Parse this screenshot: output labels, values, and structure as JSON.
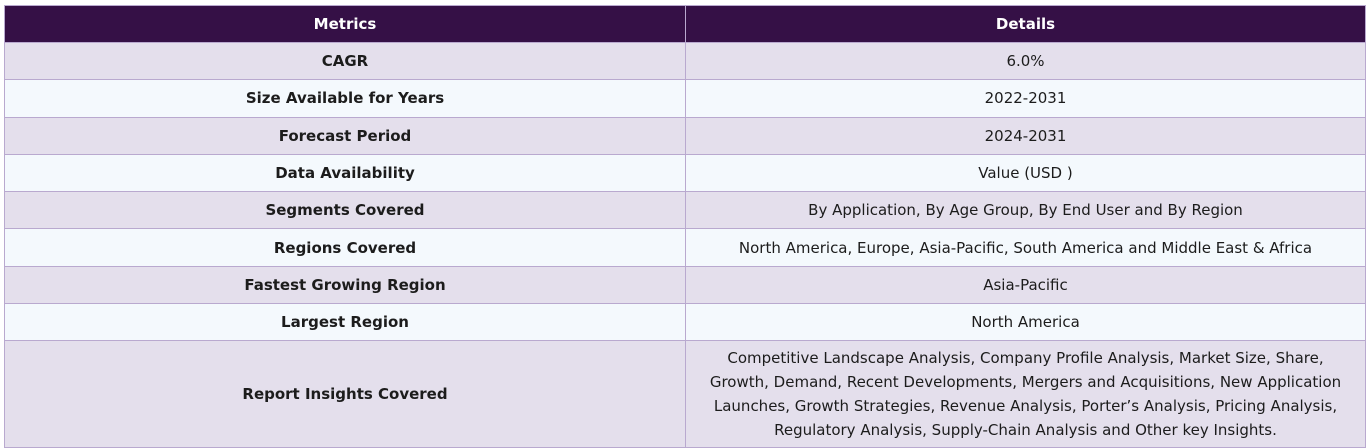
{
  "table": {
    "headers": {
      "metric": "Metrics",
      "details": "Details"
    },
    "rows": [
      {
        "metric": "CAGR",
        "details": "6.0%"
      },
      {
        "metric": "Size Available for Years",
        "details": "2022-2031"
      },
      {
        "metric": "Forecast Period",
        "details": "2024-2031"
      },
      {
        "metric": "Data Availability",
        "details": "Value (USD )"
      },
      {
        "metric": "Segments Covered",
        "details": "By Application, By Age Group, By End User and By Region"
      },
      {
        "metric": "Regions Covered",
        "details": "North America, Europe, Asia-Pacific, South America and Middle East & Africa"
      },
      {
        "metric": "Fastest Growing Region",
        "details": "Asia-Pacific"
      },
      {
        "metric": "Largest Region",
        "details": "North America"
      },
      {
        "metric": "Report Insights Covered",
        "details": "Competitive Landscape Analysis, Company Profile Analysis, Market Size, Share, Growth, Demand, Recent Developments, Mergers and Acquisitions, New Application Launches, Growth Strategies, Revenue Analysis, Porter’s Analysis, Pricing Analysis, Regulatory Analysis, Supply-Chain Analysis and Other key Insights."
      }
    ]
  }
}
